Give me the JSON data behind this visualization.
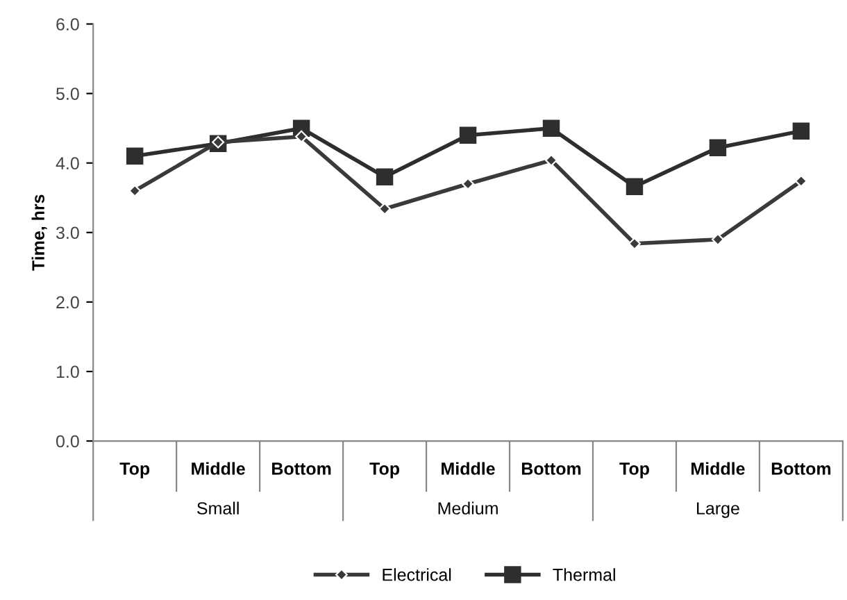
{
  "chart_data": {
    "type": "line",
    "ylabel": "Time, hrs",
    "categories": [
      "Top",
      "Middle",
      "Bottom",
      "Top",
      "Middle",
      "Bottom",
      "Top",
      "Middle",
      "Bottom"
    ],
    "series": [
      {
        "name": "Electrical",
        "color": "#3a3a3a",
        "marker": "diamond",
        "values": [
          3.6,
          4.3,
          4.38,
          3.34,
          3.7,
          4.04,
          2.84,
          2.9,
          3.74
        ]
      },
      {
        "name": "Thermal",
        "color": "#2e2e2e",
        "marker": "square",
        "values": [
          4.1,
          4.28,
          4.5,
          3.8,
          4.4,
          4.5,
          3.66,
          4.22,
          4.46
        ]
      }
    ],
    "ylim": [
      0,
      6
    ],
    "yticks": [
      {
        "value": 0,
        "label": "0.0"
      },
      {
        "value": 1,
        "label": "1.0"
      },
      {
        "value": 2,
        "label": "2.0"
      },
      {
        "value": 3,
        "label": "3.0"
      },
      {
        "value": 4,
        "label": "4.0"
      },
      {
        "value": 5,
        "label": "5.0"
      },
      {
        "value": 6,
        "label": "6.0"
      }
    ],
    "annotations": [
      "Small",
      "Medium",
      "Large"
    ],
    "legend": "bottom",
    "grid": false
  }
}
